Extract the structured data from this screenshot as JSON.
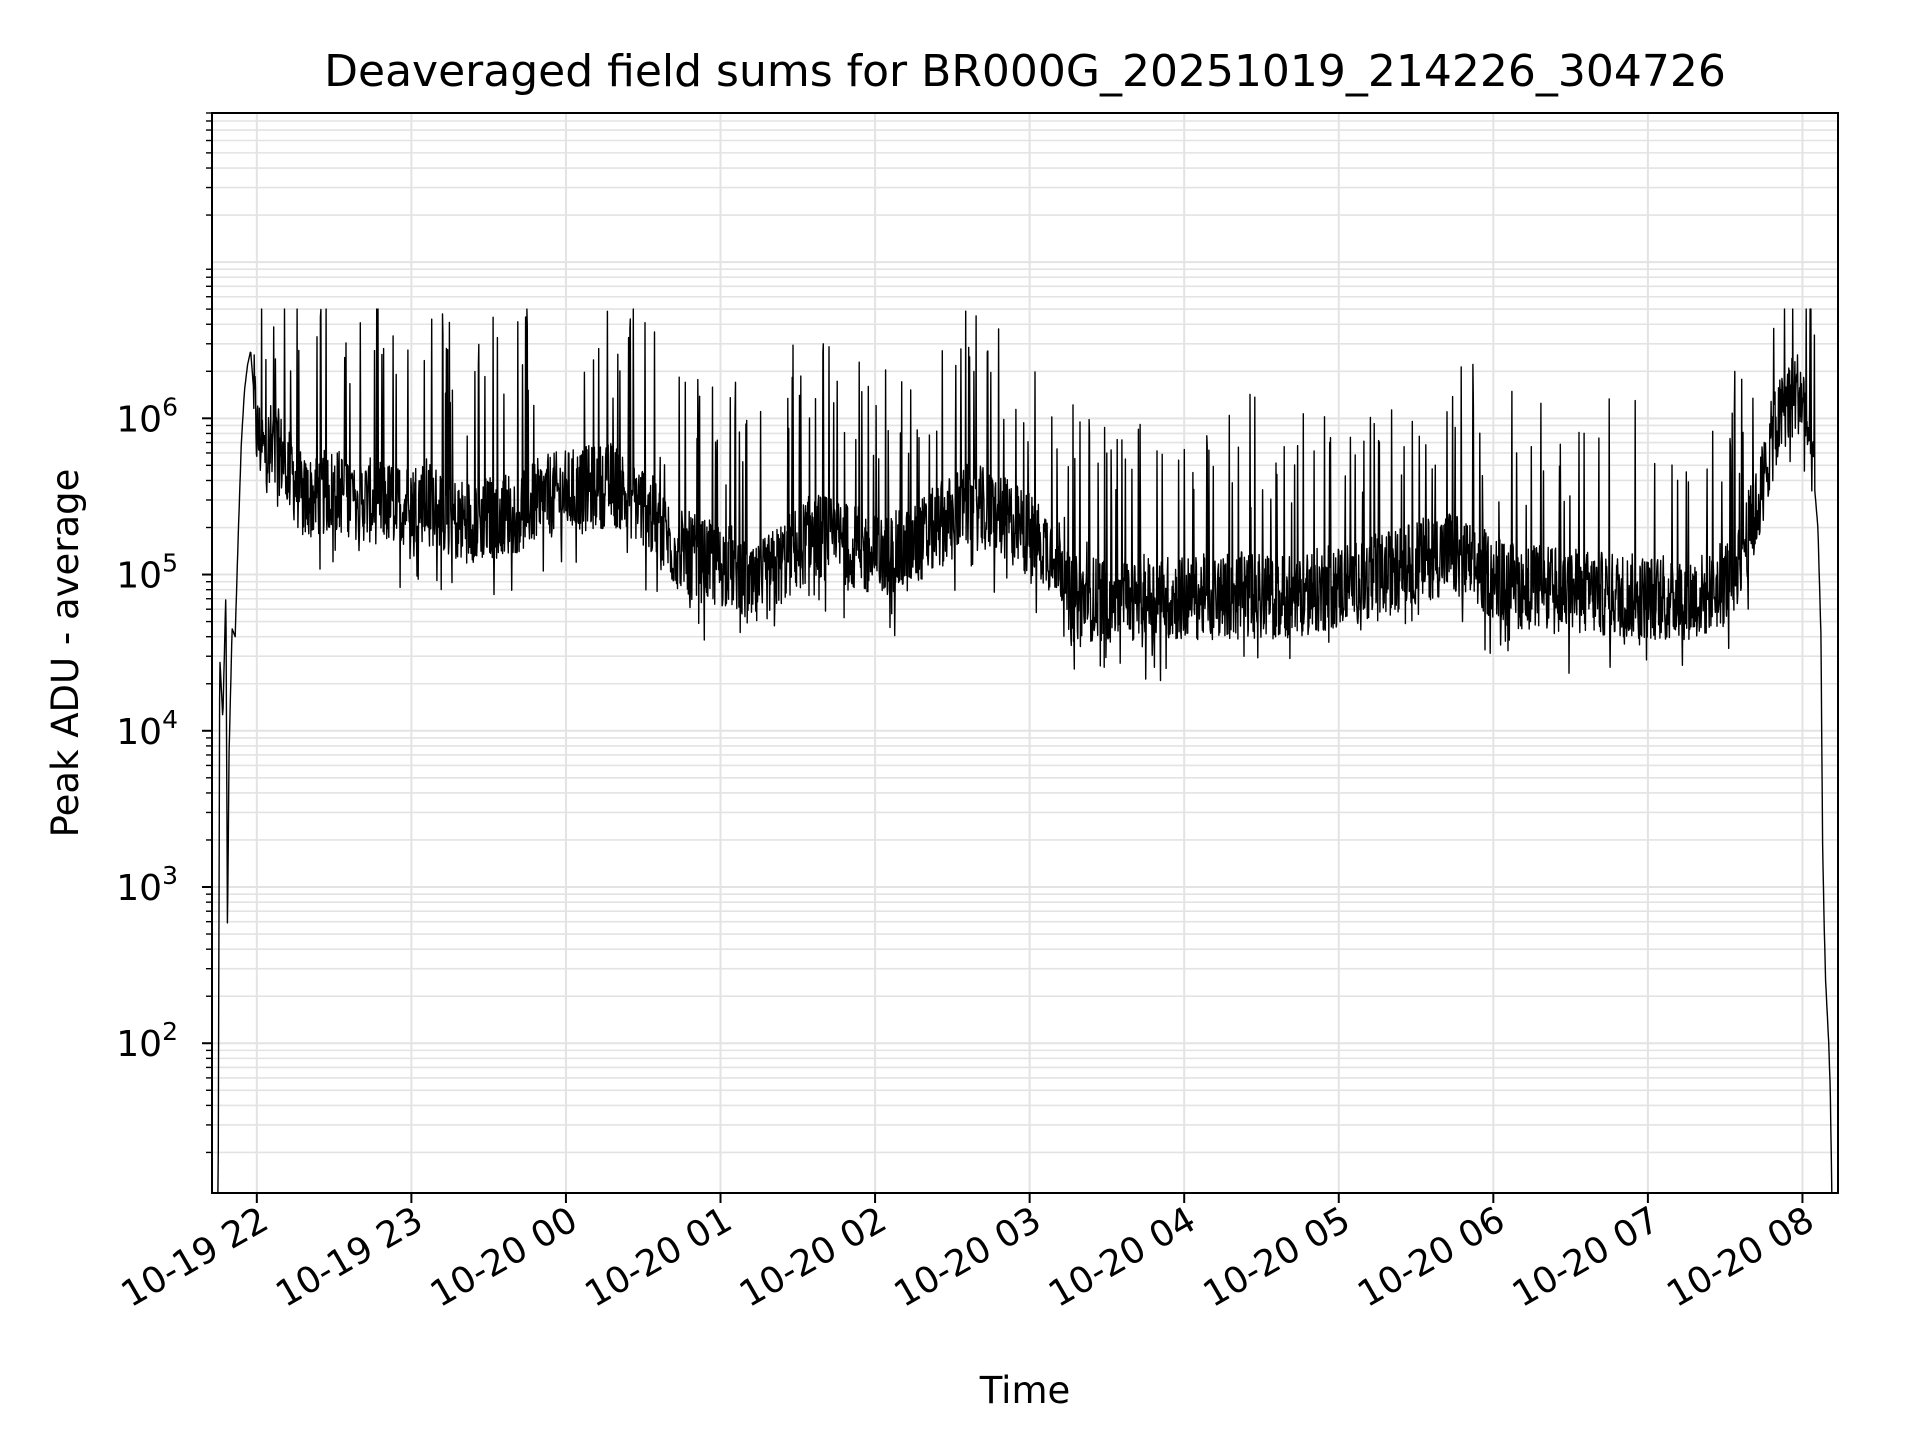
{
  "chart_data": {
    "type": "line",
    "title": "Deaveraged field sums for BR000G_20251019_214226_304726",
    "xlabel": "Time",
    "ylabel": "Peak ADU - average",
    "yscale": "log",
    "ylim": [
      11,
      90000000
    ],
    "x_unit": "hours since 10-19 21:00",
    "xlim": [
      21.71,
      32.23
    ],
    "grid": {
      "major": true,
      "minor_y": true
    },
    "colors": {
      "line": "#000000",
      "grid": "#e3e3e3",
      "frame": "#000000"
    },
    "x_ticks": [
      {
        "value": 22,
        "label": "10-19 22"
      },
      {
        "value": 23,
        "label": "10-19 23"
      },
      {
        "value": 24,
        "label": "10-20 00"
      },
      {
        "value": 25,
        "label": "10-20 01"
      },
      {
        "value": 26,
        "label": "10-20 02"
      },
      {
        "value": 27,
        "label": "10-20 03"
      },
      {
        "value": 28,
        "label": "10-20 04"
      },
      {
        "value": 29,
        "label": "10-20 05"
      },
      {
        "value": 30,
        "label": "10-20 06"
      },
      {
        "value": 31,
        "label": "10-20 07"
      },
      {
        "value": 32,
        "label": "10-20 08"
      }
    ],
    "y_ticks": [
      {
        "value": 100,
        "base": "10",
        "exp": "2"
      },
      {
        "value": 1000,
        "base": "10",
        "exp": "3"
      },
      {
        "value": 10000,
        "base": "10",
        "exp": "4"
      },
      {
        "value": 100000,
        "base": "10",
        "exp": "5"
      },
      {
        "value": 1000000,
        "base": "10",
        "exp": "6"
      }
    ],
    "series": [
      {
        "name": "deaveraged field sum",
        "note": "dense noisy time series; values sampled as [hour, ADU] anchor points",
        "points": [
          [
            21.72,
            11
          ],
          [
            21.75,
            11
          ],
          [
            21.76,
            30000
          ],
          [
            21.78,
            12000
          ],
          [
            21.8,
            80000
          ],
          [
            21.81,
            480
          ],
          [
            21.82,
            7000
          ],
          [
            21.84,
            45000
          ],
          [
            21.86,
            40000
          ],
          [
            21.88,
            180000
          ],
          [
            21.9,
            700000
          ],
          [
            21.92,
            1500000
          ],
          [
            21.94,
            2200000
          ],
          [
            21.96,
            2700000
          ],
          [
            21.98,
            1500000
          ],
          [
            22.0,
            800000
          ],
          [
            22.05,
            600000
          ],
          [
            22.1,
            700000
          ],
          [
            22.2,
            500000
          ],
          [
            22.3,
            300000
          ],
          [
            22.5,
            350000
          ],
          [
            22.7,
            300000
          ],
          [
            22.9,
            280000
          ],
          [
            23.1,
            300000
          ],
          [
            23.3,
            220000
          ],
          [
            23.5,
            230000
          ],
          [
            23.7,
            260000
          ],
          [
            23.9,
            320000
          ],
          [
            24.1,
            350000
          ],
          [
            24.3,
            380000
          ],
          [
            24.5,
            280000
          ],
          [
            24.7,
            150000
          ],
          [
            24.9,
            120000
          ],
          [
            25.1,
            110000
          ],
          [
            25.2,
            75000
          ],
          [
            25.4,
            120000
          ],
          [
            25.6,
            180000
          ],
          [
            25.8,
            160000
          ],
          [
            26.0,
            130000
          ],
          [
            26.2,
            140000
          ],
          [
            26.4,
            200000
          ],
          [
            26.6,
            280000
          ],
          [
            26.8,
            240000
          ],
          [
            27.0,
            180000
          ],
          [
            27.2,
            130000
          ],
          [
            27.25,
            70000
          ],
          [
            27.5,
            70000
          ],
          [
            27.8,
            72000
          ],
          [
            28.0,
            70000
          ],
          [
            28.3,
            75000
          ],
          [
            28.6,
            72000
          ],
          [
            28.9,
            80000
          ],
          [
            29.1,
            90000
          ],
          [
            29.3,
            100000
          ],
          [
            29.5,
            120000
          ],
          [
            29.7,
            140000
          ],
          [
            29.9,
            110000
          ],
          [
            30.1,
            85000
          ],
          [
            30.4,
            80000
          ],
          [
            30.7,
            75000
          ],
          [
            31.0,
            72000
          ],
          [
            31.2,
            70000
          ],
          [
            31.4,
            75000
          ],
          [
            31.55,
            100000
          ],
          [
            31.7,
            250000
          ],
          [
            31.8,
            700000
          ],
          [
            31.9,
            1300000
          ],
          [
            31.98,
            1500000
          ],
          [
            32.02,
            1100000
          ],
          [
            32.06,
            600000
          ],
          [
            32.1,
            200000
          ],
          [
            32.12,
            40000
          ],
          [
            32.13,
            2000
          ],
          [
            32.14,
            600
          ],
          [
            32.15,
            250
          ],
          [
            32.17,
            100
          ],
          [
            32.18,
            50
          ],
          [
            32.19,
            11
          ]
        ]
      }
    ]
  }
}
